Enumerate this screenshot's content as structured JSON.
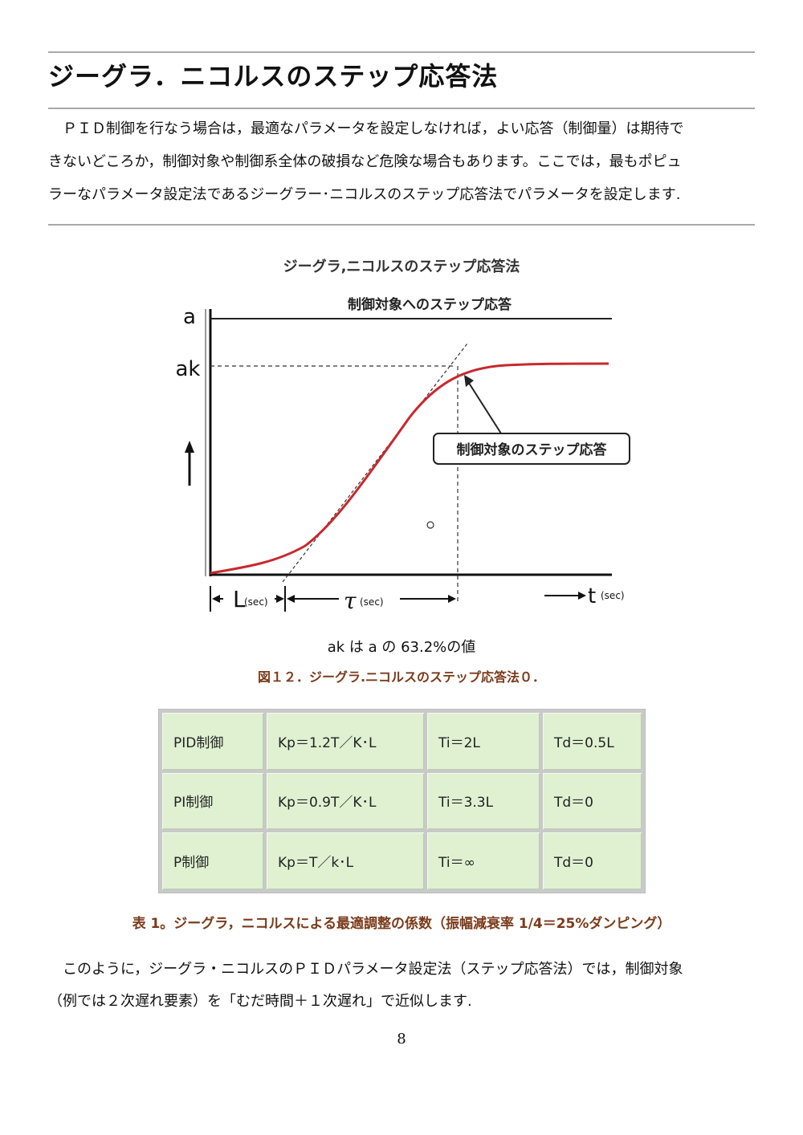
{
  "heading": "ジーグラ．ニコルスのステップ応答法",
  "intro_lines": [
    "　ＰＩＤ制御を行なう場合は，最適なパラメータを設定しなければ，よい応答（制御量）は期待で",
    "きないどころか，制御対象や制御系全体の破損など危険な場合もあります。ここでは，最もポピュ",
    "ラーなパラメータ設定法であるジーグラー･ニコルスのステップ応答法でパラメータを設定します."
  ],
  "figure": {
    "title": "ジーグラ,ニコルスのステップ応答法",
    "subtitle": "制御対象へのステップ応答",
    "label_a": "a",
    "label_ak": "ak",
    "label_L": "L",
    "label_L_unit": "(sec)",
    "label_tau": "τ",
    "label_tau_unit": "(sec)",
    "label_t": "t",
    "label_t_unit": "(sec)",
    "callout": "制御対象のステップ応答",
    "note": "ak は a の 63.2%の値",
    "caption": "図１２．ジーグラ.ニコルスのステップ応答法０．"
  },
  "chart_data": {
    "type": "line",
    "title": "ジーグラ,ニコルスのステップ応答法",
    "subtitle": "制御対象へのステップ応答",
    "xlabel": "t(sec)",
    "ylabel": "",
    "y_levels": [
      "a",
      "ak"
    ],
    "series": [
      {
        "name": "制御対象のステップ応答"
      }
    ],
    "annotations": [
      "L(sec)",
      "τ(sec)",
      "ak は a の 63.2%の値"
    ]
  },
  "table": {
    "rows": [
      [
        "PID制御",
        "Kp＝1.2T／K･L",
        "Ti＝2L",
        "Td＝0.5L"
      ],
      [
        "PI制御",
        "Kp＝0.9T／K･L",
        "Ti＝3.3L",
        "Td＝0"
      ],
      [
        "P制御",
        "Kp＝T／k･L",
        "Ti＝∞",
        "Td＝0"
      ]
    ],
    "caption": "表 1。ジーグラ，ニコルスによる最適調整の係数（振幅減衰率 1/4＝25%ダンピング）"
  },
  "body_lines": [
    "　このように，ジーグラ・ニコルスのＰＩＤパラメータ設定法（ステップ応答法）では，制御対象",
    "（例では２次遅れ要素）を「むだ時間＋１次遅れ」で近似します."
  ],
  "page_number": "8",
  "colors": {
    "curve": "#c8282d",
    "table_cell": "#e0f1d2",
    "caption": "#7a3b1b",
    "rule": "#a8a8a8"
  }
}
